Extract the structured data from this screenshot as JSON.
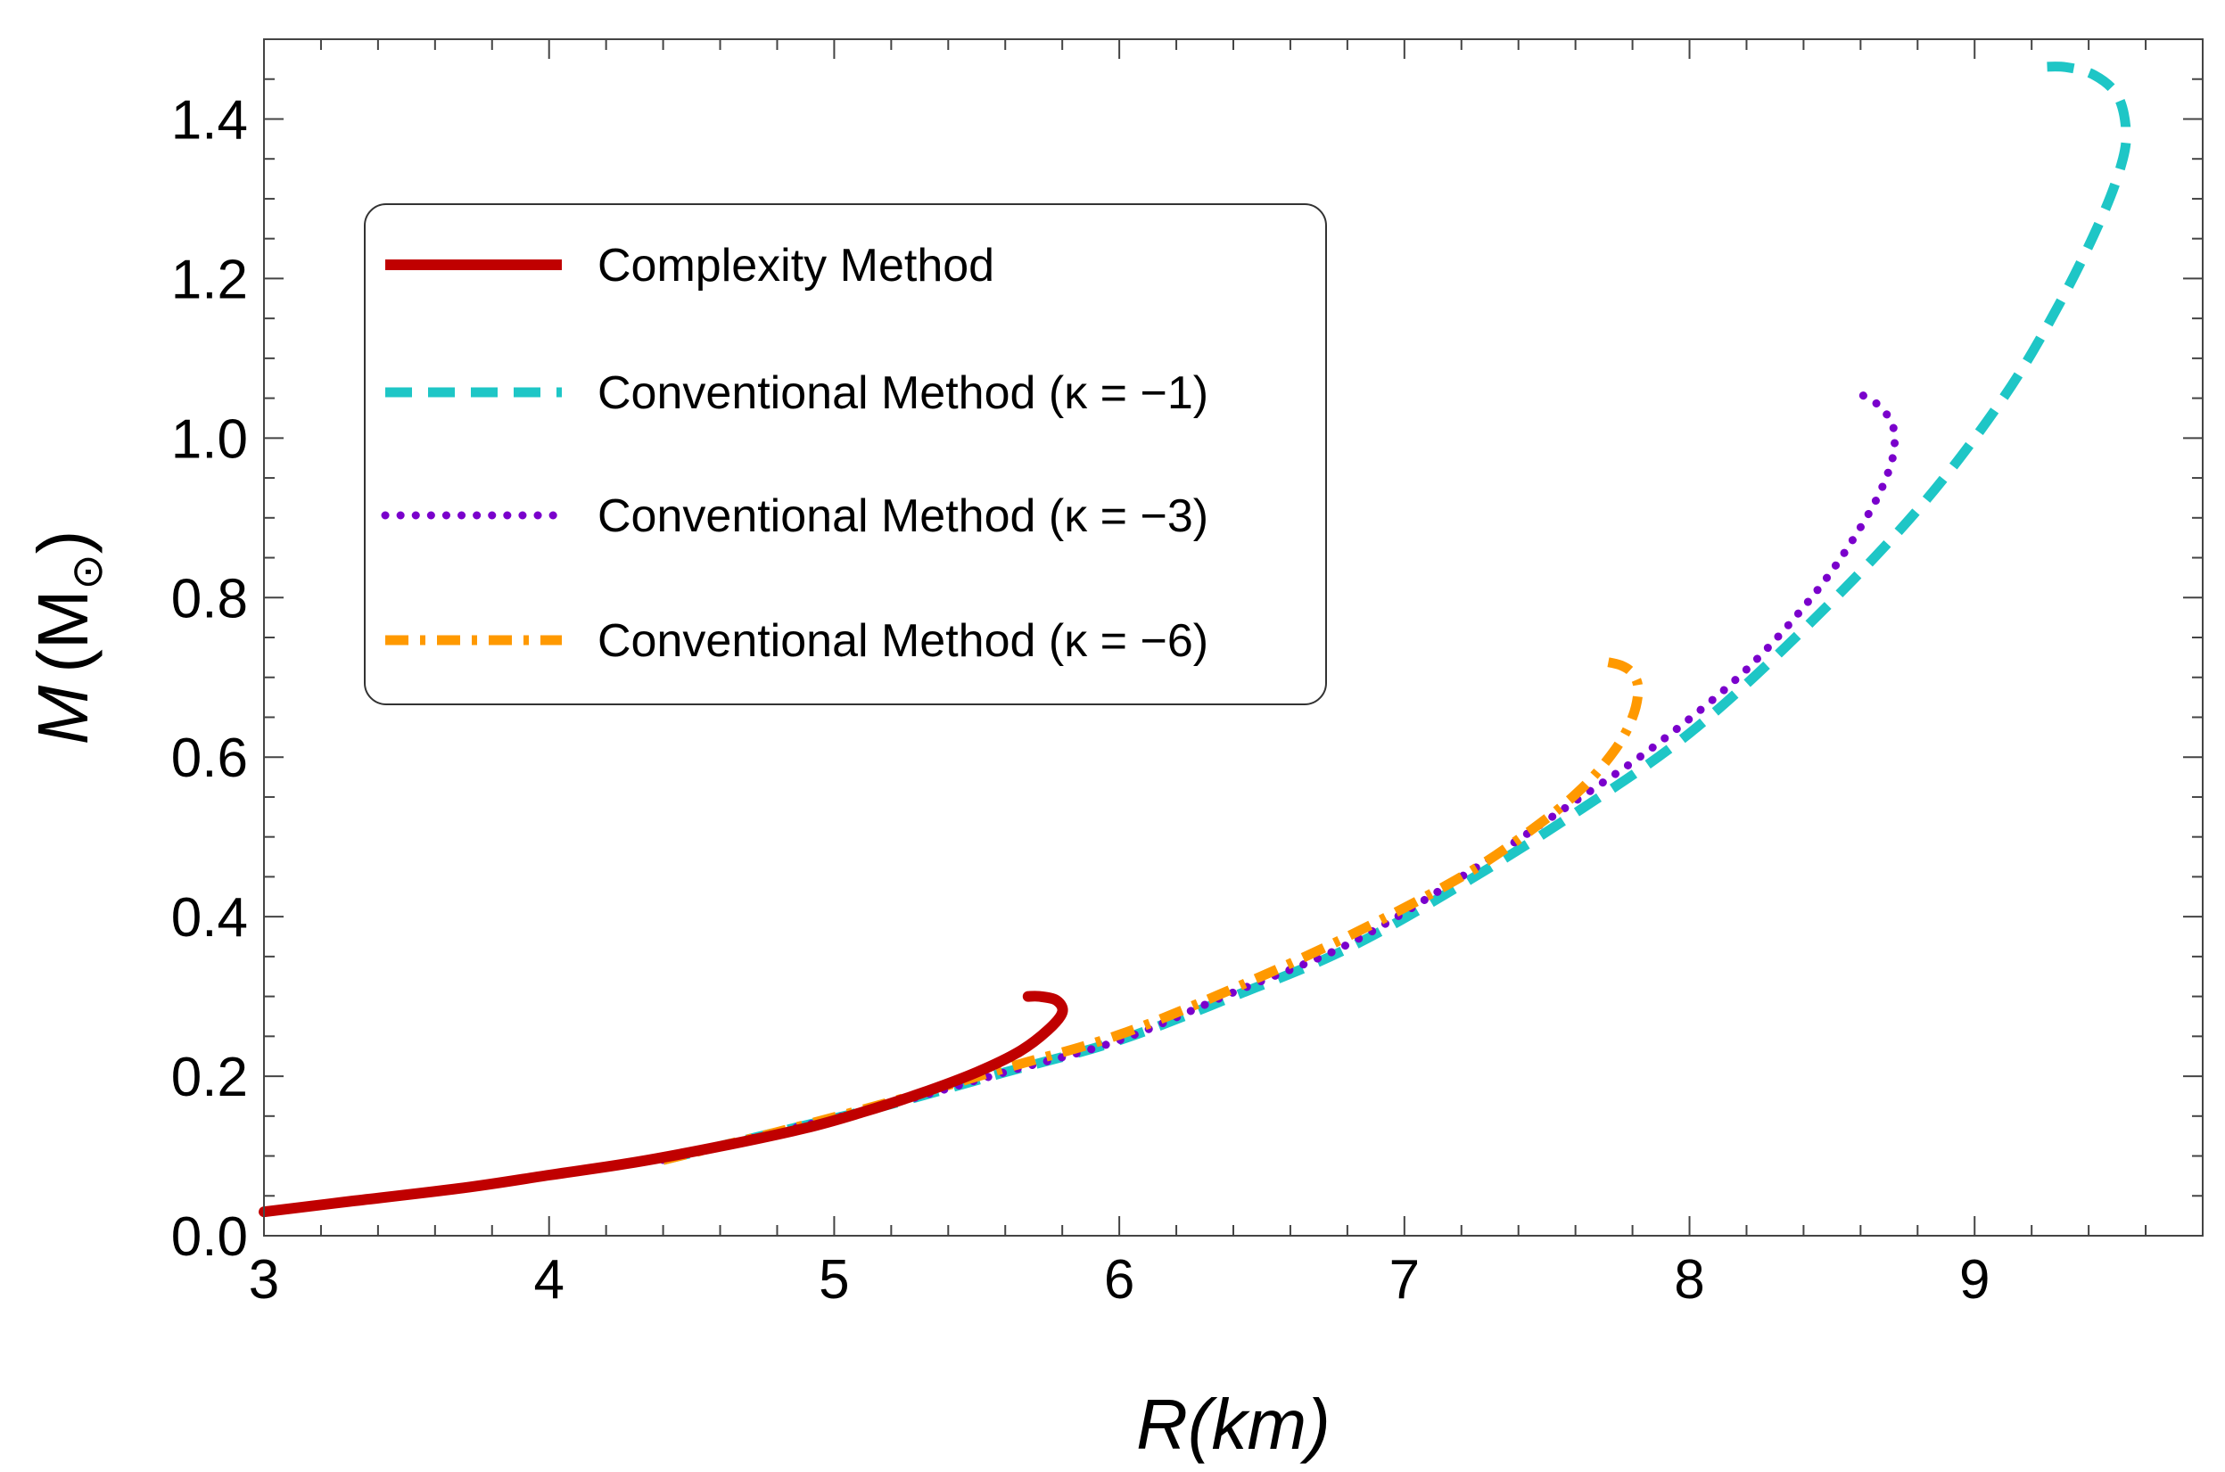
{
  "chart_data": {
    "type": "line",
    "title": "",
    "xlabel": "R(km)",
    "ylabel": "M (M⊙)",
    "ylabel_parts": {
      "symbol": "M",
      "paren_open": "(",
      "unit": "M",
      "sub": "⊙",
      "paren_close": ")"
    },
    "xlim": [
      3,
      9.8
    ],
    "ylim": [
      0,
      1.5
    ],
    "x_ticks": [
      3,
      4,
      5,
      6,
      7,
      8,
      9
    ],
    "x_tick_labels": [
      "3",
      "4",
      "5",
      "6",
      "7",
      "8",
      "9"
    ],
    "y_ticks": [
      0,
      0.2,
      0.4,
      0.6,
      0.8,
      1.0,
      1.2,
      1.4
    ],
    "y_tick_labels": [
      "0.0",
      "0.2",
      "0.4",
      "0.6",
      "0.8",
      "1.0",
      "1.2",
      "1.4"
    ],
    "grid": false,
    "legend_position": "upper-left",
    "series": [
      {
        "name": "Complexity Method",
        "style": "solid",
        "color": "#c00000",
        "x": [
          3.0,
          3.3,
          3.7,
          4.0,
          4.3,
          4.6,
          4.9,
          5.1,
          5.3,
          5.5,
          5.65,
          5.75,
          5.8,
          5.78,
          5.72,
          5.68
        ],
        "y": [
          0.03,
          0.043,
          0.06,
          0.076,
          0.092,
          0.112,
          0.135,
          0.155,
          0.178,
          0.205,
          0.231,
          0.258,
          0.28,
          0.295,
          0.3,
          0.3
        ]
      },
      {
        "name": "Conventional Method (κ = −1)",
        "style": "dashed",
        "color": "#1ec6c6",
        "x": [
          4.4,
          4.8,
          5.2,
          5.6,
          6.0,
          6.4,
          6.8,
          7.2,
          7.6,
          8.0,
          8.4,
          8.8,
          9.1,
          9.3,
          9.45,
          9.52,
          9.53,
          9.5,
          9.42,
          9.32,
          9.22
        ],
        "y": [
          0.095,
          0.13,
          0.165,
          0.205,
          0.245,
          0.3,
          0.36,
          0.44,
          0.53,
          0.63,
          0.76,
          0.91,
          1.05,
          1.17,
          1.28,
          1.35,
          1.39,
          1.43,
          1.455,
          1.465,
          1.465
        ]
      },
      {
        "name": "Conventional Method (κ = −3)",
        "style": "dotted",
        "color": "#7a00cc",
        "x": [
          4.4,
          4.8,
          5.2,
          5.6,
          6.0,
          6.4,
          6.8,
          7.2,
          7.6,
          7.9,
          8.2,
          8.45,
          8.62,
          8.7,
          8.72,
          8.7,
          8.65,
          8.57
        ],
        "y": [
          0.095,
          0.13,
          0.165,
          0.205,
          0.245,
          0.305,
          0.365,
          0.45,
          0.545,
          0.62,
          0.71,
          0.81,
          0.9,
          0.96,
          1.0,
          1.025,
          1.045,
          1.06
        ]
      },
      {
        "name": "Conventional Method (κ = −6)",
        "style": "dashdot",
        "color": "#ff9900",
        "x": [
          4.4,
          4.8,
          5.2,
          5.6,
          6.0,
          6.4,
          6.8,
          7.2,
          7.45,
          7.62,
          7.74,
          7.8,
          7.82,
          7.8,
          7.76,
          7.7
        ],
        "y": [
          0.095,
          0.13,
          0.168,
          0.21,
          0.252,
          0.31,
          0.375,
          0.45,
          0.51,
          0.56,
          0.61,
          0.65,
          0.685,
          0.705,
          0.715,
          0.72
        ]
      }
    ]
  }
}
